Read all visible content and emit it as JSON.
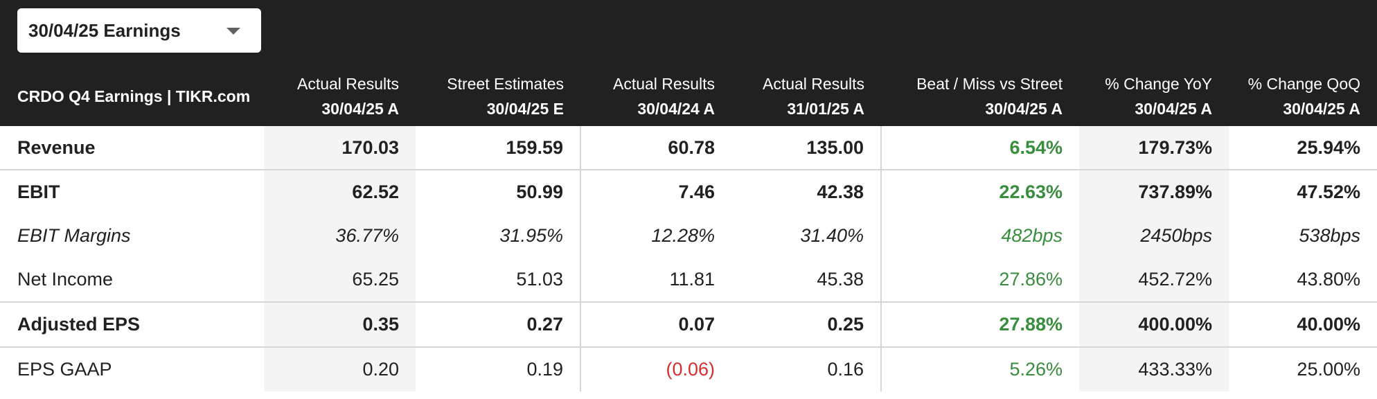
{
  "dropdown": {
    "label": "30/04/25 Earnings",
    "icon": "chevron-down-icon"
  },
  "table": {
    "title": "CRDO Q4 Earnings | TIKR.com",
    "columns": [
      {
        "top": "Actual Results",
        "date": "30/04/25 A"
      },
      {
        "top": "Street Estimates",
        "date": "30/04/25 E"
      },
      {
        "top": "Actual Results",
        "date": "30/04/24 A"
      },
      {
        "top": "Actual Results",
        "date": "31/01/25 A"
      },
      {
        "top": "Beat / Miss vs Street",
        "date": "30/04/25 A"
      },
      {
        "top": "% Change YoY",
        "date": "30/04/25 A"
      },
      {
        "top": "% Change QoQ",
        "date": "30/04/25 A"
      }
    ],
    "rows": [
      {
        "label": "Revenue",
        "values": [
          "170.03",
          "159.59",
          "60.78",
          "135.00",
          "6.54%",
          "179.73%",
          "25.94%"
        ]
      },
      {
        "label": "EBIT",
        "values": [
          "62.52",
          "50.99",
          "7.46",
          "42.38",
          "22.63%",
          "737.89%",
          "47.52%"
        ]
      },
      {
        "label": "EBIT Margins",
        "values": [
          "36.77%",
          "31.95%",
          "12.28%",
          "31.40%",
          "482bps",
          "2450bps",
          "538bps"
        ]
      },
      {
        "label": "Net Income",
        "values": [
          "65.25",
          "51.03",
          "11.81",
          "45.38",
          "27.86%",
          "452.72%",
          "43.80%"
        ]
      },
      {
        "label": "Adjusted EPS",
        "values": [
          "0.35",
          "0.27",
          "0.07",
          "0.25",
          "27.88%",
          "400.00%",
          "40.00%"
        ]
      },
      {
        "label": "EPS GAAP",
        "values": [
          "0.20",
          "0.19",
          "(0.06)",
          "0.16",
          "5.26%",
          "433.33%",
          "25.00%"
        ]
      }
    ]
  },
  "colors": {
    "header_bg": "#212121",
    "positive": "#388e3c",
    "negative": "#d32f2f",
    "shade": "#f4f4f4"
  }
}
